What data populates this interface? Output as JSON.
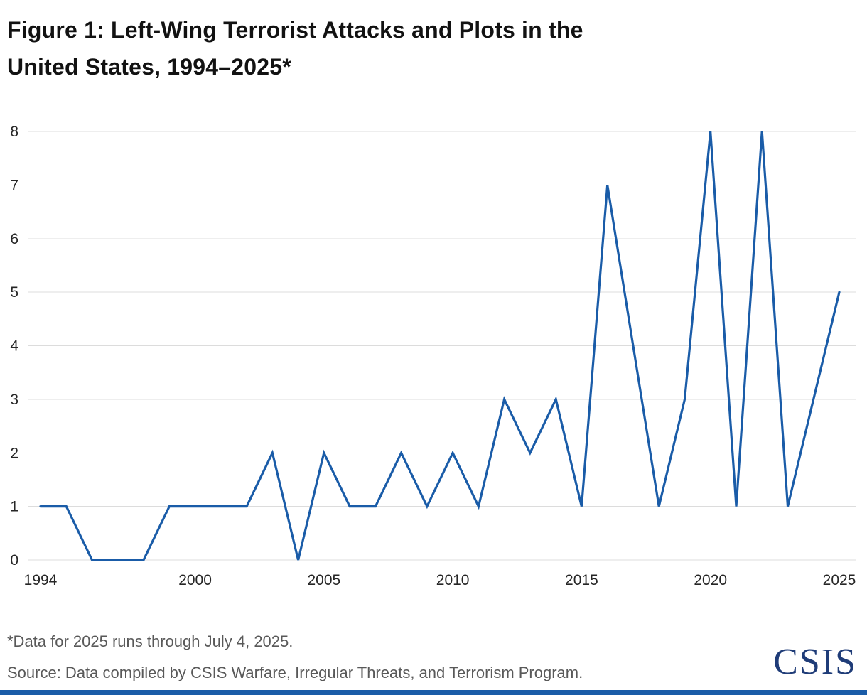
{
  "header": {
    "title_line1": "Figure 1: Left-Wing Terrorist Attacks and Plots in the",
    "title_line2": "United States, 1994–2025*"
  },
  "chart_data": {
    "type": "line",
    "title": "Figure 1: Left-Wing Terrorist Attacks and Plots in the United States, 1994–2025*",
    "x": [
      1994,
      1995,
      1996,
      1997,
      1998,
      1999,
      2000,
      2001,
      2002,
      2003,
      2004,
      2005,
      2006,
      2007,
      2008,
      2009,
      2010,
      2011,
      2012,
      2013,
      2014,
      2015,
      2016,
      2017,
      2018,
      2019,
      2020,
      2021,
      2022,
      2023,
      2024,
      2025
    ],
    "values": [
      1,
      1,
      0,
      0,
      0,
      1,
      1,
      1,
      1,
      2,
      0,
      2,
      1,
      1,
      2,
      1,
      2,
      1,
      3,
      2,
      3,
      1,
      7,
      4,
      1,
      3,
      8,
      1,
      8,
      1,
      3,
      5
    ],
    "xlabel": "",
    "ylabel": "",
    "ylim": [
      0,
      8
    ],
    "yticks": [
      0,
      1,
      2,
      3,
      4,
      5,
      6,
      7,
      8
    ],
    "xticks": [
      1994,
      2000,
      2005,
      2010,
      2015,
      2020,
      2025
    ],
    "grid": true,
    "legend": "none",
    "line_color": "#1a5ca8",
    "grid_color": "#dcdcdc",
    "tick_label_color": "#262626"
  },
  "footer": {
    "footnote": "*Data for 2025 runs through July 4, 2025.",
    "source": "Source: Data compiled by CSIS Warfare, Irregular Threats, and Terrorism Program.",
    "logo_text": "CSIS",
    "logo_color": "#1f3c78",
    "accent_color": "#1a5ca8"
  }
}
